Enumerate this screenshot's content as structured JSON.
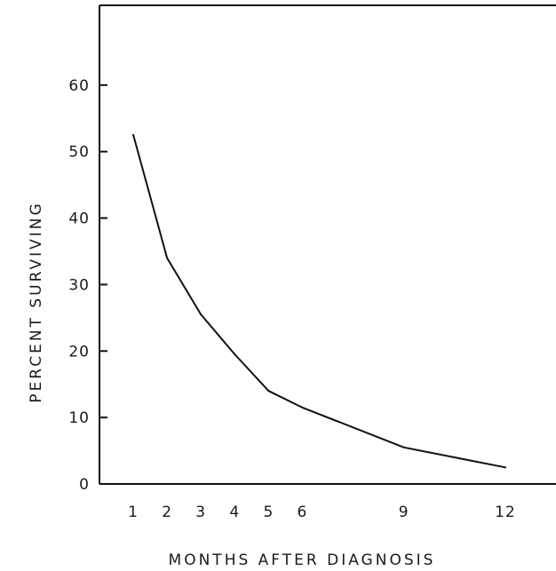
{
  "chart_data": {
    "type": "line",
    "title": "",
    "xlabel": "MONTHS AFTER DIAGNOSIS",
    "ylabel": "PERCENT SURVIVING",
    "xlim": [
      0,
      13.5
    ],
    "ylim": [
      0,
      72
    ],
    "x_ticks": [
      1,
      2,
      3,
      4,
      5,
      6,
      9,
      12
    ],
    "x_tick_labels": [
      "1",
      "2",
      "3",
      "4",
      "5",
      "6",
      "9",
      "12"
    ],
    "y_ticks": [
      0,
      10,
      20,
      30,
      40,
      50,
      60
    ],
    "y_tick_labels": [
      "0",
      "10",
      "20",
      "30",
      "40",
      "50",
      "60"
    ],
    "grid": false,
    "legend": "none",
    "series": [
      {
        "x": [
          1,
          2,
          3,
          4,
          5,
          6,
          9,
          12
        ],
        "values": [
          52.5,
          34,
          25.5,
          19.5,
          14,
          11.5,
          5.5,
          2.5
        ]
      }
    ],
    "colors": {
      "line": "#111111",
      "axis": "#111111"
    }
  }
}
